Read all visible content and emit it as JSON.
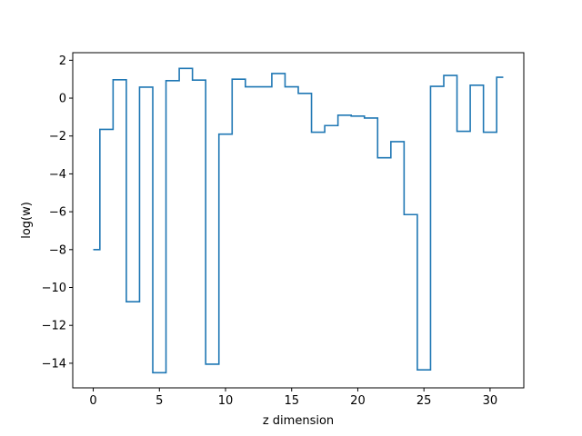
{
  "chart_data": {
    "type": "line",
    "drawstyle": "steps-mid",
    "xlabel": "z dimension",
    "ylabel": "log(w)",
    "xlim": [
      -1.55,
      32.55
    ],
    "ylim": [
      -15.3,
      2.4
    ],
    "xticks": [
      0,
      5,
      10,
      15,
      20,
      25,
      30
    ],
    "yticks": [
      2,
      0,
      -2,
      -4,
      -6,
      -8,
      -10,
      -12,
      -14
    ],
    "grid": false,
    "series": [
      {
        "color": "#1f77b4",
        "x": [
          0,
          1,
          2,
          3,
          4,
          5,
          6,
          7,
          8,
          9,
          10,
          11,
          12,
          13,
          14,
          15,
          16,
          17,
          18,
          19,
          20,
          21,
          22,
          23,
          24,
          25,
          26,
          27,
          28,
          29,
          30,
          31
        ],
        "y": [
          -8.0,
          -1.65,
          0.97,
          -10.75,
          0.58,
          -14.5,
          0.92,
          1.57,
          0.95,
          -14.05,
          -1.9,
          1.0,
          0.6,
          0.6,
          1.3,
          0.6,
          0.25,
          -1.8,
          -1.45,
          -0.9,
          -0.95,
          -1.05,
          -3.15,
          -2.3,
          -6.15,
          -14.35,
          0.62,
          1.2,
          -1.75,
          0.68,
          -1.8,
          1.1
        ]
      }
    ]
  }
}
